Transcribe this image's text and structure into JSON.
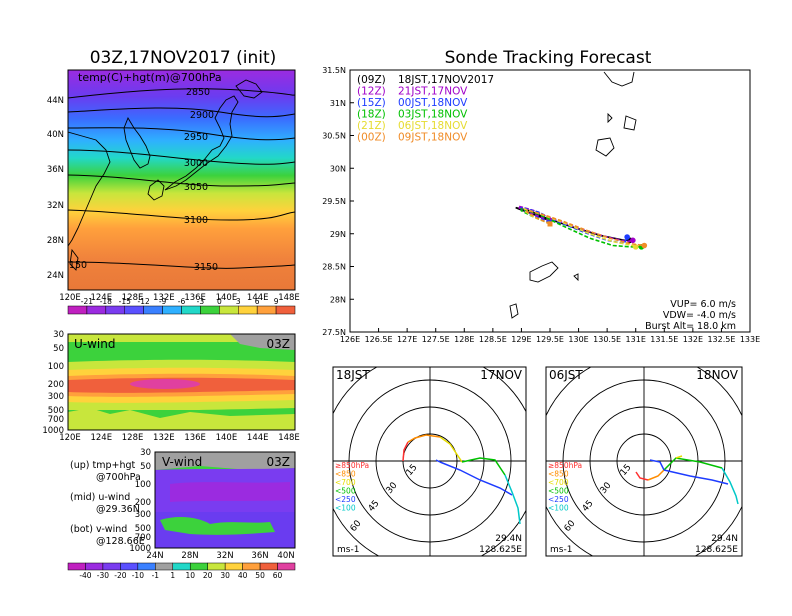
{
  "titles": {
    "left": "03Z,17NOV2017 (init)",
    "right": "Sonde Tracking Forecast"
  },
  "map_panel": {
    "label": "temp(C)+hgt(m)@700hPa",
    "lat_ticks": [
      "44N",
      "40N",
      "36N",
      "32N",
      "28N",
      "24N"
    ],
    "lon_ticks": [
      "120E",
      "124E",
      "128E",
      "132E",
      "136E",
      "140E",
      "144E",
      "148E"
    ],
    "contour_labels": [
      "2850",
      "2900",
      "2950",
      "3000",
      "3050",
      "3100",
      "3150",
      "150"
    ]
  },
  "temp_colorbar": [
    "-21",
    "-18",
    "-15",
    "-12",
    "-9",
    "-6",
    "-3",
    "0",
    "3",
    "6",
    "9"
  ],
  "u_panel": {
    "label": "U-wind",
    "time": "03Z",
    "p_ticks": [
      "30",
      "50",
      "100",
      "200",
      "300",
      "500",
      "700",
      "1000"
    ],
    "lon_ticks": [
      "120E",
      "124E",
      "128E",
      "132E",
      "136E",
      "140E",
      "144E",
      "148E"
    ]
  },
  "v_panel": {
    "label": "V-wind",
    "time": "03Z",
    "p_ticks": [
      "30",
      "50",
      "100",
      "200",
      "300",
      "500",
      "700",
      "1000"
    ],
    "lat_ticks": [
      "24N",
      "28N",
      "32N",
      "36N",
      "40N"
    ]
  },
  "legend_notes": {
    "up1": "(up) tmp+hgt",
    "up2": "@700hPa",
    "mid1": "(mid) u-wind",
    "mid2": "@29.36N",
    "bot1": "(bot) v-wind",
    "bot2": "@128.66E"
  },
  "wind_colorbar": [
    "-40",
    "-30",
    "-20",
    "-10",
    "-1",
    "1",
    "10",
    "20",
    "30",
    "40",
    "50",
    "60"
  ],
  "track_panel": {
    "lat_ticks": [
      "31.5N",
      "31N",
      "30.5N",
      "30N",
      "29.5N",
      "29N",
      "28.5N",
      "28N",
      "27.5N"
    ],
    "lon_ticks": [
      "126E",
      "126.5E",
      "127E",
      "127.5E",
      "128E",
      "128.5E",
      "129E",
      "129.5E",
      "130E",
      "130.5E",
      "131E",
      "131.5E",
      "132E",
      "132.5E",
      "133E"
    ],
    "legend": [
      {
        "tag": "(09Z)",
        "text": "18JST,17NOV2017",
        "color": "#000000"
      },
      {
        "tag": "(12Z)",
        "text": "21JST,17NOV",
        "color": "#a000c8"
      },
      {
        "tag": "(15Z)",
        "text": "00JST,18NOV",
        "color": "#1e3cff"
      },
      {
        "tag": "(18Z)",
        "text": "03JST,18NOV",
        "color": "#00c000"
      },
      {
        "tag": "(21Z)",
        "text": "06JST,18NOV",
        "color": "#e6dc32"
      },
      {
        "tag": "(00Z)",
        "text": "09JST,18NOV",
        "color": "#f08c28"
      }
    ],
    "info": [
      "VUP= 6.0 m/s",
      "VDW= -4.0 m/s",
      "Burst Alt= 18.0 km"
    ]
  },
  "chart_data": {
    "type": "line",
    "xlabel": "",
    "ylabel": "",
    "xlim": [
      126,
      133
    ],
    "ylim": [
      27.5,
      31.5
    ],
    "series": [
      {
        "name": "(09Z) 18JST,17NOV2017",
        "color": "#000000",
        "x": [
          129.5,
          129.2,
          128.95,
          128.9,
          129.15,
          129.4,
          129.9,
          130.4,
          130.8,
          130.9
        ],
        "y": [
          29.2,
          29.3,
          29.38,
          29.4,
          29.35,
          29.25,
          29.1,
          28.97,
          28.9,
          28.9
        ]
      },
      {
        "name": "(12Z) 21JST,17NOV",
        "color": "#a000c8",
        "x": [
          129.5,
          129.15,
          128.95,
          128.95,
          129.2,
          129.5,
          130.0,
          130.5,
          130.85,
          130.95
        ],
        "y": [
          29.2,
          29.32,
          29.4,
          29.42,
          29.36,
          29.24,
          29.08,
          28.95,
          28.88,
          28.9
        ]
      },
      {
        "name": "(15Z) 00JST,18NOV",
        "color": "#1e3cff",
        "x": [
          129.5,
          129.2,
          129.0,
          129.0,
          129.3,
          129.6,
          130.1,
          130.5,
          130.8,
          130.85
        ],
        "y": [
          29.17,
          29.28,
          29.37,
          29.4,
          29.33,
          29.2,
          29.02,
          28.9,
          28.85,
          28.95
        ]
      },
      {
        "name": "(18Z) 03JST,18NOV",
        "color": "#00c000",
        "x": [
          129.5,
          129.2,
          129.0,
          129.0,
          129.3,
          129.7,
          130.2,
          130.6,
          130.9,
          131.1
        ],
        "y": [
          29.15,
          29.26,
          29.35,
          29.38,
          29.3,
          29.13,
          28.93,
          28.82,
          28.8,
          28.8
        ]
      },
      {
        "name": "(21Z) 06JST,18NOV",
        "color": "#e6dc32",
        "x": [
          129.5,
          129.2,
          129.05,
          129.05,
          129.3,
          129.7,
          130.2,
          130.6,
          130.9,
          131.0
        ],
        "y": [
          29.15,
          29.26,
          29.35,
          29.38,
          29.31,
          29.18,
          29.0,
          28.88,
          28.83,
          28.8
        ]
      },
      {
        "name": "(00Z) 09JST,18NOV",
        "color": "#f08c28",
        "x": [
          129.5,
          129.25,
          129.1,
          129.1,
          129.35,
          129.7,
          130.15,
          130.55,
          130.9,
          131.15
        ],
        "y": [
          29.15,
          29.25,
          29.33,
          29.36,
          29.3,
          29.2,
          29.05,
          28.93,
          28.85,
          28.82
        ]
      }
    ]
  },
  "hodographs": [
    {
      "time": "18JST",
      "date": "17NOV",
      "rings": [
        "15",
        "30",
        "45",
        "60"
      ],
      "unit": "ms-1",
      "lat": "29.4N",
      "lon": "128.625E",
      "levels": [
        {
          "label": "≥850hPa",
          "color": "#ff3030"
        },
        {
          "label": "<850",
          "color": "#ff8c00"
        },
        {
          "label": "<700",
          "color": "#e6dc00"
        },
        {
          "label": "<500",
          "color": "#00c000"
        },
        {
          "label": "<250",
          "color": "#1e3cff"
        },
        {
          "label": "<100",
          "color": "#00c8c8"
        }
      ]
    },
    {
      "time": "06JST",
      "date": "18NOV",
      "rings": [
        "15",
        "30",
        "45",
        "60"
      ],
      "unit": "ms-1",
      "lat": "29.4N",
      "lon": "128.625E",
      "levels": [
        {
          "label": "≥850hPa",
          "color": "#ff3030"
        },
        {
          "label": "<850",
          "color": "#ff8c00"
        },
        {
          "label": "<700",
          "color": "#e6dc00"
        },
        {
          "label": "<500",
          "color": "#00c000"
        },
        {
          "label": "<250",
          "color": "#1e3cff"
        },
        {
          "label": "<100",
          "color": "#00c8c8"
        }
      ]
    }
  ]
}
